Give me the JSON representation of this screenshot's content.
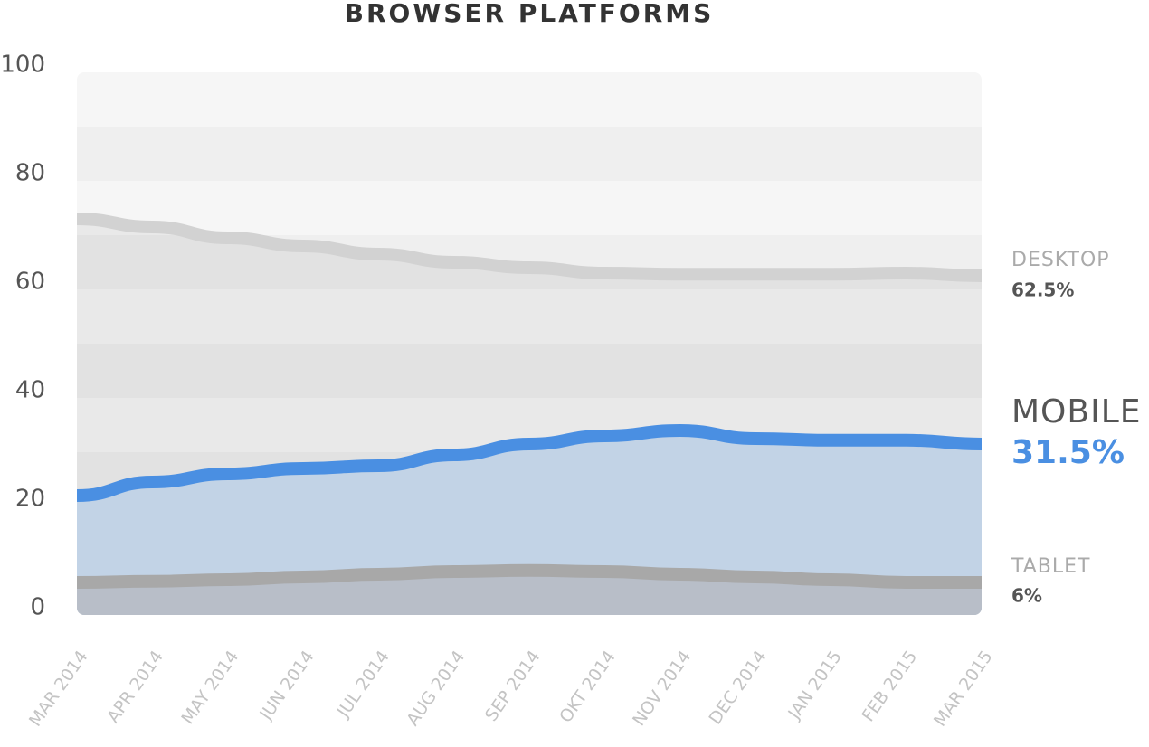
{
  "chart_data": {
    "type": "area",
    "title": "BROWSER PLATFORMS",
    "categories": [
      "MAR 2014",
      "APR 2014",
      "MAY 2014",
      "JUN 2014",
      "JUL 2014",
      "AUG 2014",
      "SEP 2014",
      "OKT 2014",
      "NOV 2014",
      "DEC 2014",
      "JAN 2015",
      "FEB 2015",
      "MAR 2015"
    ],
    "series": [
      {
        "name": "DESKTOP",
        "color": "#d2d2d2",
        "area_color": "rgba(0,0,0,0.05)",
        "label_color": "#aaaaaa",
        "value_label_color": "#555555",
        "values": [
          73,
          71.5,
          69.5,
          68,
          66.5,
          65,
          64,
          63,
          62.8,
          62.8,
          62.8,
          63,
          62.5
        ],
        "value_labels": [
          null,
          null,
          null,
          null,
          null,
          null,
          null,
          null,
          null,
          null,
          null,
          null,
          "62.5%"
        ]
      },
      {
        "name": "MOBILE",
        "color": "#4a8fe2",
        "area_color": "#c2d3e6",
        "label_color": "#555555",
        "value_label_color": "#4a8fe2",
        "values": [
          22,
          24.5,
          26,
          27,
          27.5,
          29.5,
          31.5,
          33,
          34,
          32.5,
          32.2,
          32.2,
          31.5
        ],
        "value_labels": [
          null,
          null,
          null,
          null,
          null,
          null,
          null,
          null,
          null,
          null,
          null,
          null,
          "31.5%"
        ]
      },
      {
        "name": "TABLET",
        "color": "#a8a8a8",
        "area_color": "#b8bec8",
        "label_color": "#aaaaaa",
        "value_label_color": "#555555",
        "values": [
          6,
          6.2,
          6.5,
          7,
          7.5,
          8,
          8.2,
          8,
          7.5,
          7,
          6.5,
          6,
          6
        ],
        "value_labels": [
          null,
          null,
          null,
          null,
          null,
          null,
          null,
          null,
          null,
          null,
          null,
          null,
          "6%"
        ]
      }
    ],
    "ylim": [
      0,
      100
    ],
    "yticks": [
      0,
      20,
      40,
      60,
      80,
      100
    ],
    "grid": true
  }
}
